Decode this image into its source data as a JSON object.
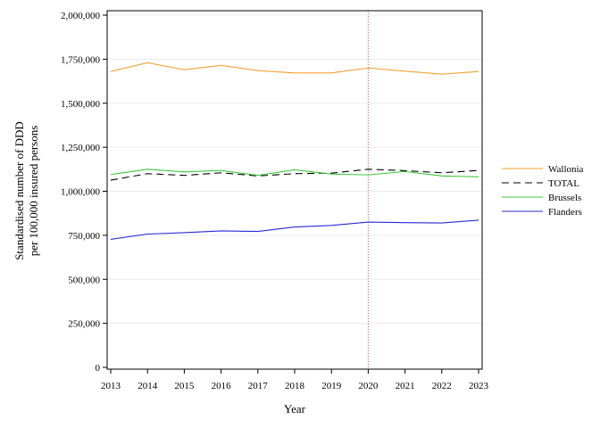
{
  "chart_data": {
    "type": "line",
    "xlabel": "Year",
    "ylabel_lines": [
      "Standardised number of DDD",
      "per 100,000 insured persons"
    ],
    "x": [
      2013,
      2014,
      2015,
      2016,
      2017,
      2018,
      2019,
      2020,
      2021,
      2022,
      2023
    ],
    "x_tick_labels": [
      "2013",
      "2014",
      "2015",
      "2016",
      "2017",
      "2018",
      "2019",
      "2020",
      "2021",
      "2022",
      "2023"
    ],
    "y_ticks": [
      0,
      250000,
      500000,
      750000,
      1000000,
      1250000,
      1500000,
      1750000,
      2000000
    ],
    "y_tick_labels": [
      "0",
      "250,000",
      "500,000",
      "750,000",
      "1,000,000",
      "1,250,000",
      "1,500,000",
      "1,750,000",
      "2,000,000"
    ],
    "xlim": [
      2013,
      2023
    ],
    "ylim": [
      0,
      2000000
    ],
    "grid": "horizontal",
    "reference_line": {
      "x": 2020,
      "color": "#c0506e",
      "style": "dotted"
    },
    "legend": "right",
    "series": [
      {
        "name": "Wallonia",
        "color": "#f5a030",
        "dash": "solid",
        "values": [
          1680000,
          1730000,
          1690000,
          1715000,
          1685000,
          1672000,
          1672000,
          1700000,
          1682000,
          1665000,
          1680000
        ]
      },
      {
        "name": "TOTAL",
        "color": "#000000",
        "dash": "8,5",
        "values": [
          1063000,
          1100000,
          1090000,
          1105000,
          1087000,
          1100000,
          1103000,
          1125000,
          1117000,
          1105000,
          1118000
        ]
      },
      {
        "name": "Brussels",
        "color": "#3cc83c",
        "dash": "solid",
        "values": [
          1095000,
          1125000,
          1110000,
          1118000,
          1090000,
          1122000,
          1098000,
          1093000,
          1112000,
          1087000,
          1082000
        ]
      },
      {
        "name": "Flanders",
        "color": "#2828d8",
        "dash": "solid",
        "values": [
          727000,
          757000,
          765000,
          775000,
          772000,
          797000,
          806000,
          825000,
          822000,
          820000,
          836000
        ]
      }
    ]
  }
}
